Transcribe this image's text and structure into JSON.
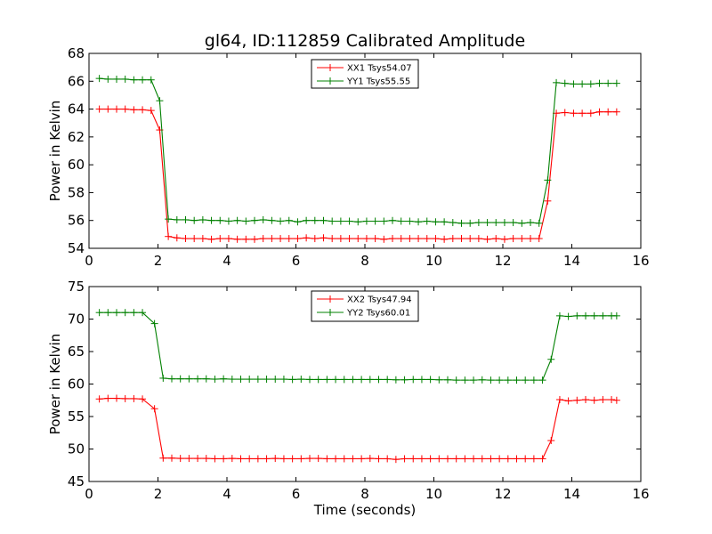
{
  "figure": {
    "title": "gl64, ID:112859 Calibrated Amplitude"
  },
  "chart_data": [
    {
      "type": "line",
      "title": "gl64, ID:112859 Calibrated Amplitude",
      "xlabel": "",
      "ylabel": "Power in Kelvin",
      "xlim": [
        0,
        16
      ],
      "ylim": [
        54,
        68
      ],
      "xticks": [
        "0",
        "2",
        "4",
        "6",
        "8",
        "10",
        "12",
        "14",
        "16"
      ],
      "yticks": [
        "54",
        "56",
        "58",
        "60",
        "62",
        "64",
        "66",
        "68"
      ],
      "grid": false,
      "legend_position": "top-center",
      "x": [
        0.3,
        0.55,
        0.8,
        1.05,
        1.3,
        1.55,
        1.8,
        2.05,
        2.3,
        2.55,
        2.8,
        3.05,
        3.3,
        3.55,
        3.8,
        4.05,
        4.3,
        4.55,
        4.8,
        5.05,
        5.3,
        5.55,
        5.8,
        6.05,
        6.3,
        6.55,
        6.8,
        7.05,
        7.3,
        7.55,
        7.8,
        8.05,
        8.3,
        8.55,
        8.8,
        9.05,
        9.3,
        9.55,
        9.8,
        10.05,
        10.3,
        10.55,
        10.8,
        11.05,
        11.3,
        11.55,
        11.8,
        12.05,
        12.3,
        12.55,
        12.8,
        13.05,
        13.3,
        13.55,
        13.8,
        14.05,
        14.3,
        14.55,
        14.8,
        15.05,
        15.3
      ],
      "series": [
        {
          "name": "XX1 Tsys54.07",
          "color": "#ff0000",
          "values": [
            64.0,
            64.0,
            64.0,
            64.0,
            63.95,
            63.95,
            63.9,
            62.5,
            54.85,
            54.75,
            54.7,
            54.7,
            54.7,
            54.65,
            54.7,
            54.7,
            54.65,
            54.65,
            54.65,
            54.7,
            54.7,
            54.7,
            54.7,
            54.7,
            54.75,
            54.7,
            54.75,
            54.7,
            54.7,
            54.7,
            54.7,
            54.7,
            54.7,
            54.65,
            54.7,
            54.7,
            54.7,
            54.7,
            54.7,
            54.7,
            54.65,
            54.7,
            54.7,
            54.7,
            54.7,
            54.65,
            54.7,
            54.65,
            54.7,
            54.7,
            54.7,
            54.7,
            57.4,
            63.7,
            63.75,
            63.7,
            63.7,
            63.7,
            63.8,
            63.8,
            63.8
          ]
        },
        {
          "name": "YY1 Tsys55.55",
          "color": "#008000",
          "values": [
            66.2,
            66.15,
            66.15,
            66.15,
            66.1,
            66.1,
            66.1,
            64.6,
            56.1,
            56.05,
            56.05,
            56.0,
            56.05,
            56.0,
            56.0,
            55.95,
            56.0,
            55.95,
            56.0,
            56.05,
            56.0,
            55.95,
            56.0,
            55.9,
            56.0,
            56.0,
            56.0,
            55.95,
            55.95,
            55.95,
            55.9,
            55.95,
            55.95,
            55.95,
            56.0,
            55.95,
            55.95,
            55.9,
            55.95,
            55.9,
            55.9,
            55.85,
            55.8,
            55.8,
            55.85,
            55.85,
            55.85,
            55.85,
            55.85,
            55.8,
            55.85,
            55.8,
            58.9,
            65.9,
            65.85,
            65.8,
            65.8,
            65.8,
            65.85,
            65.85,
            65.85
          ]
        }
      ]
    },
    {
      "type": "line",
      "title": "",
      "xlabel": "Time (seconds)",
      "ylabel": "Power in Kelvin",
      "xlim": [
        0,
        16
      ],
      "ylim": [
        45,
        75
      ],
      "xticks": [
        "0",
        "2",
        "4",
        "6",
        "8",
        "10",
        "12",
        "14",
        "16"
      ],
      "yticks": [
        "45",
        "50",
        "55",
        "60",
        "65",
        "70",
        "75"
      ],
      "grid": false,
      "legend_position": "top-center",
      "x": [
        0.3,
        0.55,
        0.8,
        1.05,
        1.3,
        1.55,
        1.8,
        2.05,
        2.3,
        2.55,
        2.8,
        3.05,
        3.3,
        3.55,
        3.8,
        4.05,
        4.3,
        4.55,
        4.8,
        5.05,
        5.3,
        5.55,
        5.8,
        6.05,
        6.3,
        6.55,
        6.8,
        7.05,
        7.3,
        7.55,
        7.8,
        8.05,
        8.3,
        8.55,
        8.8,
        9.05,
        9.3,
        9.55,
        9.8,
        10.05,
        10.3,
        10.55,
        10.8,
        11.05,
        11.3,
        11.55,
        11.8,
        12.05,
        12.3,
        12.55,
        12.8,
        13.05,
        13.3,
        13.55,
        13.8,
        14.05,
        14.3,
        14.55,
        14.8,
        15.05,
        15.3
      ],
      "series": [
        {
          "name": "XX2 Tsys47.94",
          "color": "#ff0000",
          "values": [
            57.7,
            57.8,
            57.8,
            57.75,
            57.75,
            57.7,
            56.2,
            48.6,
            48.6,
            48.55,
            48.55,
            48.55,
            48.55,
            48.5,
            48.5,
            48.55,
            48.5,
            48.5,
            48.5,
            48.5,
            48.55,
            48.5,
            48.5,
            48.5,
            48.55,
            48.55,
            48.5,
            48.5,
            48.5,
            48.5,
            48.5,
            48.55,
            48.5,
            48.5,
            48.4,
            48.5,
            48.5,
            48.5,
            48.5,
            48.5,
            48.5,
            48.5,
            48.5,
            48.5,
            48.5,
            48.5,
            48.5,
            48.5,
            48.5,
            48.5,
            48.5,
            48.5,
            51.3,
            57.6,
            57.4,
            57.5,
            57.6,
            57.5,
            57.6,
            57.6,
            57.5
          ],
          "x_override": [
            0.3,
            0.55,
            0.8,
            1.05,
            1.3,
            1.55,
            1.9,
            2.15,
            2.4,
            2.65,
            2.9,
            3.15,
            3.4,
            3.65,
            3.9,
            4.15,
            4.4,
            4.65,
            4.9,
            5.15,
            5.4,
            5.65,
            5.9,
            6.15,
            6.4,
            6.65,
            6.9,
            7.15,
            7.4,
            7.65,
            7.9,
            8.15,
            8.4,
            8.65,
            8.9,
            9.15,
            9.4,
            9.65,
            9.9,
            10.15,
            10.4,
            10.65,
            10.9,
            11.15,
            11.4,
            11.65,
            11.9,
            12.15,
            12.4,
            12.65,
            12.9,
            13.15,
            13.4,
            13.65,
            13.9,
            14.15,
            14.4,
            14.65,
            14.9,
            15.15,
            15.3
          ]
        },
        {
          "name": "YY2 Tsys60.01",
          "color": "#008000",
          "values": [
            71.0,
            71.0,
            71.0,
            71.0,
            71.0,
            71.0,
            69.3,
            60.9,
            60.8,
            60.8,
            60.8,
            60.8,
            60.8,
            60.75,
            60.8,
            60.75,
            60.75,
            60.75,
            60.75,
            60.75,
            60.75,
            60.75,
            60.7,
            60.75,
            60.7,
            60.7,
            60.7,
            60.7,
            60.7,
            60.7,
            60.7,
            60.7,
            60.7,
            60.7,
            60.65,
            60.65,
            60.7,
            60.7,
            60.7,
            60.65,
            60.65,
            60.6,
            60.6,
            60.6,
            60.65,
            60.6,
            60.6,
            60.6,
            60.6,
            60.6,
            60.6,
            60.6,
            63.8,
            70.5,
            70.4,
            70.5,
            70.5,
            70.5,
            70.5,
            70.5,
            70.5
          ],
          "x_override": [
            0.3,
            0.55,
            0.8,
            1.05,
            1.3,
            1.55,
            1.9,
            2.15,
            2.4,
            2.65,
            2.9,
            3.15,
            3.4,
            3.65,
            3.9,
            4.15,
            4.4,
            4.65,
            4.9,
            5.15,
            5.4,
            5.65,
            5.9,
            6.15,
            6.4,
            6.65,
            6.9,
            7.15,
            7.4,
            7.65,
            7.9,
            8.15,
            8.4,
            8.65,
            8.9,
            9.15,
            9.4,
            9.65,
            9.9,
            10.15,
            10.4,
            10.65,
            10.9,
            11.15,
            11.4,
            11.65,
            11.9,
            12.15,
            12.4,
            12.65,
            12.9,
            13.15,
            13.4,
            13.65,
            13.9,
            14.15,
            14.4,
            14.65,
            14.9,
            15.15,
            15.3
          ]
        }
      ]
    }
  ]
}
